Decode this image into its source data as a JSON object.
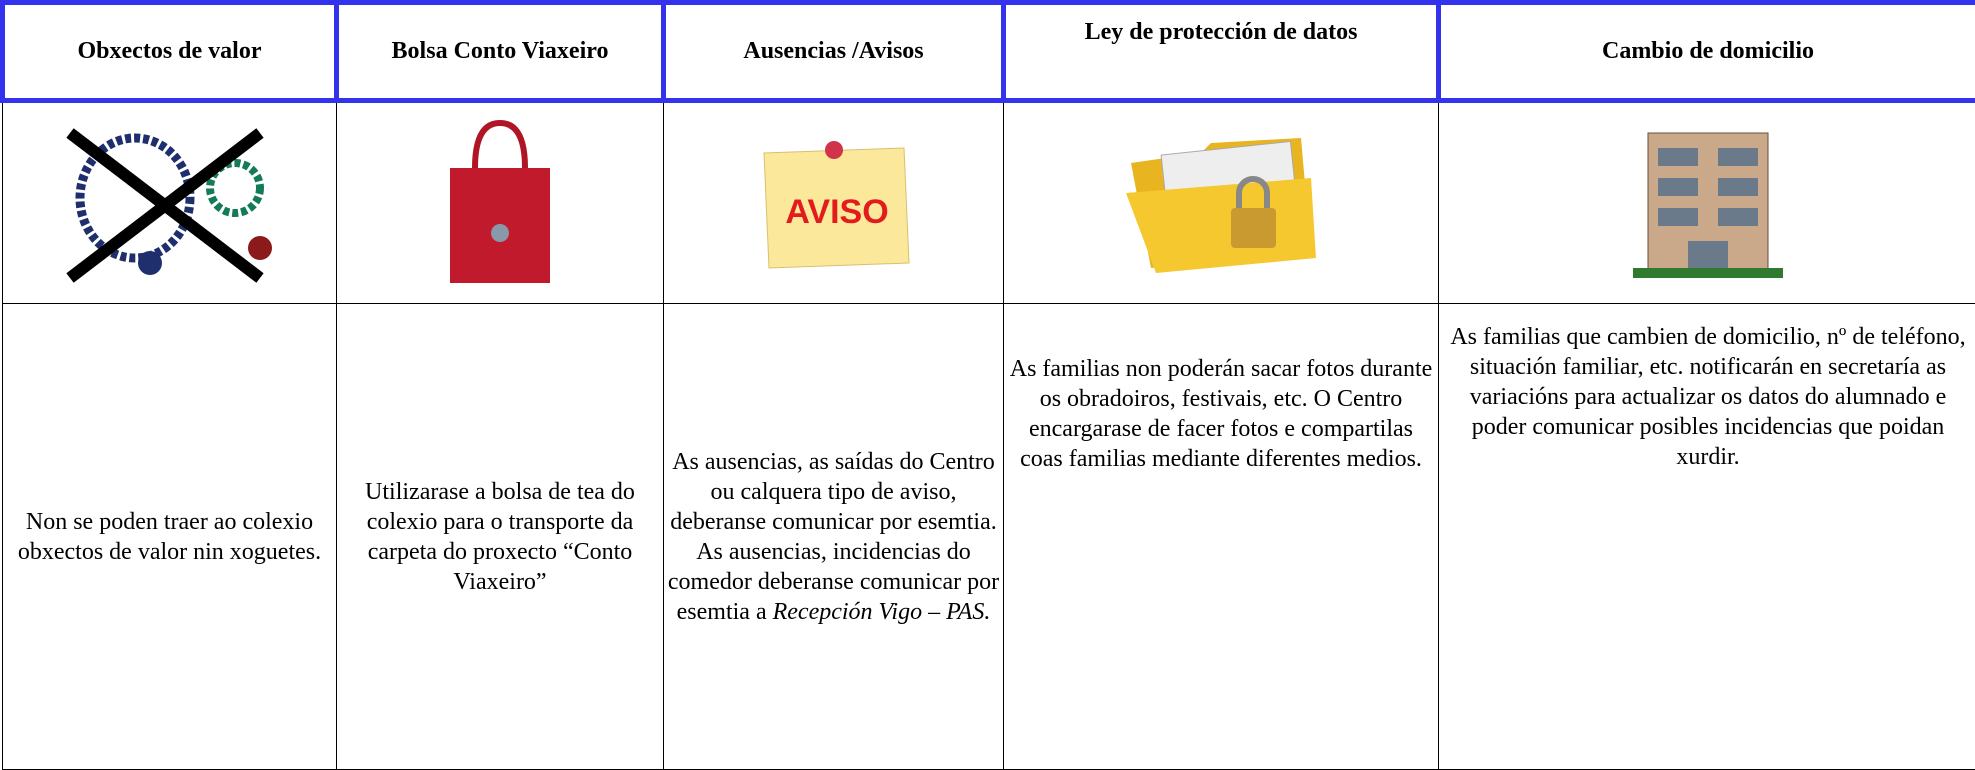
{
  "table": {
    "headers": [
      "Obxectos de valor",
      "Bolsa Conto Viaxeiro",
      "Ausencias /Avisos",
      "Ley de protección de datos",
      "Cambio de domicilio"
    ],
    "aviso_sign": "AVISO",
    "cells": [
      {
        "text": "Non se poden traer ao colexio obxectos de valor nin xoguetes."
      },
      {
        "text": "Utilizarase a bolsa de tea do colexio para o transporte da carpeta do proxecto “Conto Viaxeiro”"
      },
      {
        "text": "As ausencias, as saídas do Centro ou calquera tipo de aviso, deberanse comunicar por esemtia. As ausencias, incidencias do comedor deberanse comunicar por esemtia a",
        "italic": "Recepción Vigo – PAS."
      },
      {
        "text": "As familias non poderán sacar fotos durante os obradoiros, festivais, etc. O Centro encargarase de facer fotos e compartilas coas familias mediante diferentes medios."
      },
      {
        "text": "As familias que cambien de domicilio, nº de teléfono, situación familiar, etc. notificarán en secretaría as variacións para actualizar os datos do alumnado e poder comunicar posibles incidencias que poidan xurdir."
      }
    ]
  }
}
